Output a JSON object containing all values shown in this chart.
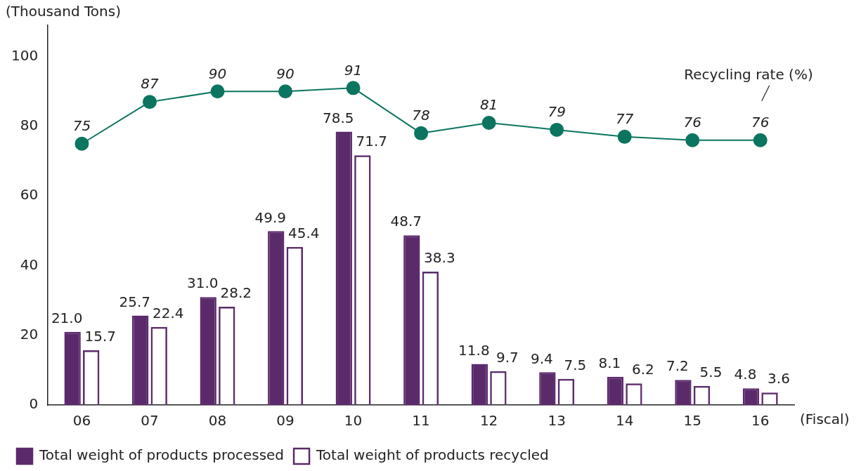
{
  "chart_data": {
    "type": "bar",
    "ylabel": "(Thousand Tons)",
    "xlabel": "(Fiscal)",
    "categories": [
      "06",
      "07",
      "08",
      "09",
      "10",
      "11",
      "12",
      "13",
      "14",
      "15",
      "16"
    ],
    "series": [
      {
        "name": "Total weight of products processed",
        "color": "#5b2a6b",
        "values": [
          21.0,
          25.7,
          31.0,
          49.9,
          78.5,
          48.7,
          11.8,
          9.4,
          8.1,
          7.2,
          4.8
        ],
        "value_labels": [
          "21.0",
          "25.7",
          "31.0",
          "49.9",
          "78.5",
          "48.7",
          "11.8",
          "9.4",
          "8.1",
          "7.2",
          "4.8"
        ]
      },
      {
        "name": "Total weight of products recycled",
        "color": "#5b2a6b",
        "values": [
          15.7,
          22.4,
          28.2,
          45.4,
          71.7,
          38.3,
          9.7,
          7.5,
          6.2,
          5.5,
          3.6
        ],
        "value_labels": [
          "15.7",
          "22.4",
          "28.2",
          "45.4",
          "71.7",
          "38.3",
          "9.7",
          "7.5",
          "6.2",
          "5.5",
          "3.6"
        ]
      },
      {
        "name": "Recycling rate (%)",
        "type": "line",
        "color": "#0b7560",
        "values": [
          75,
          87,
          90,
          90,
          91,
          78,
          81,
          79,
          77,
          76,
          76
        ],
        "value_labels": [
          "75",
          "87",
          "90",
          "90",
          "91",
          "78",
          "81",
          "79",
          "77",
          "76",
          "76"
        ]
      }
    ],
    "ylim": [
      0,
      109
    ],
    "yticks": [
      0,
      20,
      40,
      60,
      80,
      100
    ],
    "grid": false,
    "legend": "bottom left",
    "marker": "circle",
    "line_style": "solid"
  }
}
